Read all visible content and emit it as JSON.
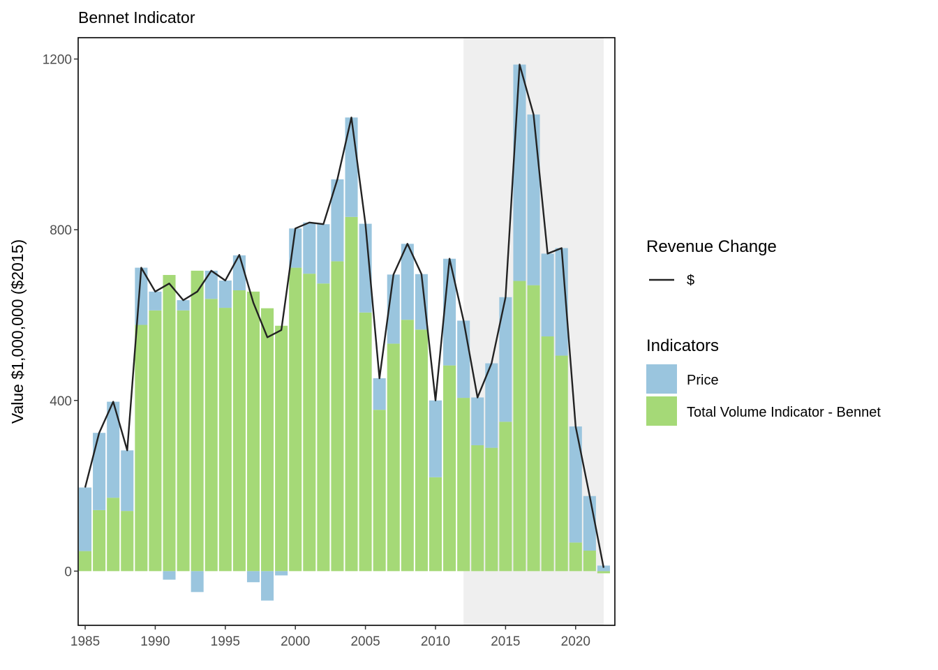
{
  "chart_data": {
    "type": "bar",
    "title": "Bennet Indicator",
    "xlabel": "",
    "ylabel": "Value $1,000,000 ($2015)",
    "xlim": [
      1984.5,
      2022.8
    ],
    "ylim": [
      -127,
      1250
    ],
    "x_ticks": [
      1985,
      1990,
      1995,
      2000,
      2005,
      2010,
      2015,
      2020
    ],
    "y_ticks": [
      0,
      400,
      800,
      1200
    ],
    "shaded_region": {
      "from": 2012,
      "to": 2022
    },
    "categories": [
      1985,
      1986,
      1987,
      1988,
      1989,
      1990,
      1991,
      1992,
      1993,
      1994,
      1995,
      1996,
      1997,
      1998,
      1999,
      2000,
      2001,
      2002,
      2003,
      2004,
      2005,
      2006,
      2007,
      2008,
      2009,
      2010,
      2011,
      2012,
      2013,
      2014,
      2015,
      2016,
      2017,
      2018,
      2019,
      2020,
      2021,
      2022
    ],
    "series": [
      {
        "name": "Total Volume Indicator - Bennet",
        "color": "#a5d977",
        "values": [
          47,
          143,
          172,
          141,
          577,
          611,
          694,
          611,
          704,
          638,
          617,
          658,
          655,
          616,
          575,
          711,
          697,
          674,
          726,
          830,
          606,
          378,
          533,
          589,
          566,
          220,
          482,
          406,
          295,
          289,
          350,
          680,
          670,
          550,
          505,
          67,
          48,
          -5
        ]
      },
      {
        "name": "Price",
        "color": "#9ac5de",
        "values": [
          149,
          181,
          225,
          142,
          134,
          44,
          -20,
          24,
          -49,
          66,
          64,
          82,
          -26,
          -69,
          -10,
          92,
          120,
          139,
          192,
          233,
          208,
          74,
          162,
          178,
          130,
          180,
          250,
          181,
          112,
          198,
          292,
          507,
          400,
          194,
          252,
          272,
          128,
          13
        ]
      },
      {
        "name": "$",
        "type": "line",
        "color": "#222222",
        "values": [
          196,
          324,
          397,
          283,
          711,
          655,
          674,
          635,
          655,
          704,
          681,
          741,
          629,
          548,
          565,
          803,
          817,
          813,
          918,
          1063,
          814,
          452,
          695,
          767,
          696,
          400,
          732,
          587,
          407,
          487,
          642,
          1187,
          1070,
          744,
          757,
          339,
          176,
          8
        ]
      }
    ],
    "legend": {
      "position": "right",
      "line_group": {
        "title": "Revenue Change",
        "items": [
          {
            "label": "$",
            "color": "#222222"
          }
        ]
      },
      "fill_group": {
        "title": "Indicators",
        "items": [
          {
            "label": "Price",
            "color": "#9ac5de"
          },
          {
            "label": "Total Volume Indicator - Bennet",
            "color": "#a5d977"
          }
        ]
      }
    },
    "panel_border": true,
    "grid": false
  }
}
